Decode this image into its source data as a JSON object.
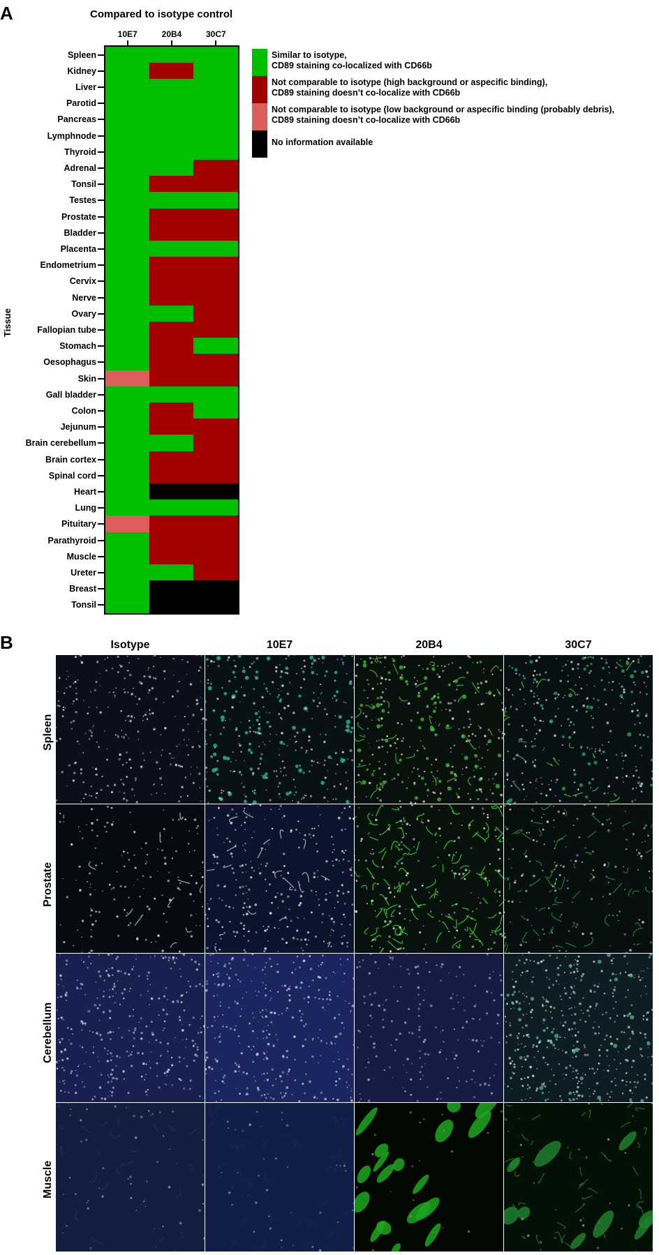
{
  "panel_a": {
    "letter": "A",
    "title": "Compared to isotype control",
    "y_axis_label": "Tissue",
    "columns": [
      "10E7",
      "20B4",
      "30C7"
    ],
    "rows": [
      {
        "tissue": "Spleen",
        "values": [
          "similar",
          "similar",
          "similar"
        ]
      },
      {
        "tissue": "Kidney",
        "values": [
          "similar",
          "high",
          "similar"
        ]
      },
      {
        "tissue": "Liver",
        "values": [
          "similar",
          "similar",
          "similar"
        ]
      },
      {
        "tissue": "Parotid",
        "values": [
          "similar",
          "similar",
          "similar"
        ]
      },
      {
        "tissue": "Pancreas",
        "values": [
          "similar",
          "similar",
          "similar"
        ]
      },
      {
        "tissue": "Lymphnode",
        "values": [
          "similar",
          "similar",
          "similar"
        ]
      },
      {
        "tissue": "Thyroid",
        "values": [
          "similar",
          "similar",
          "similar"
        ]
      },
      {
        "tissue": "Adrenal",
        "values": [
          "similar",
          "similar",
          "high"
        ]
      },
      {
        "tissue": "Tonsil",
        "values": [
          "similar",
          "high",
          "high"
        ]
      },
      {
        "tissue": "Testes",
        "values": [
          "similar",
          "similar",
          "similar"
        ]
      },
      {
        "tissue": "Prostate",
        "values": [
          "similar",
          "high",
          "high"
        ]
      },
      {
        "tissue": "Bladder",
        "values": [
          "similar",
          "high",
          "high"
        ]
      },
      {
        "tissue": "Placenta",
        "values": [
          "similar",
          "similar",
          "similar"
        ]
      },
      {
        "tissue": "Endometrium",
        "values": [
          "similar",
          "high",
          "high"
        ]
      },
      {
        "tissue": "Cervix",
        "values": [
          "similar",
          "high",
          "high"
        ]
      },
      {
        "tissue": "Nerve",
        "values": [
          "similar",
          "high",
          "high"
        ]
      },
      {
        "tissue": "Ovary",
        "values": [
          "similar",
          "similar",
          "high"
        ]
      },
      {
        "tissue": "Fallopian tube",
        "values": [
          "similar",
          "high",
          "high"
        ]
      },
      {
        "tissue": "Stomach",
        "values": [
          "similar",
          "high",
          "similar"
        ]
      },
      {
        "tissue": "Oesophagus",
        "values": [
          "similar",
          "high",
          "high"
        ]
      },
      {
        "tissue": "Skin",
        "values": [
          "low",
          "high",
          "high"
        ]
      },
      {
        "tissue": "Gall bladder",
        "values": [
          "similar",
          "similar",
          "similar"
        ]
      },
      {
        "tissue": "Colon",
        "values": [
          "similar",
          "high",
          "similar"
        ]
      },
      {
        "tissue": "Jejunum",
        "values": [
          "similar",
          "high",
          "high"
        ]
      },
      {
        "tissue": "Brain cerebellum",
        "values": [
          "similar",
          "similar",
          "high"
        ]
      },
      {
        "tissue": "Brain cortex",
        "values": [
          "similar",
          "high",
          "high"
        ]
      },
      {
        "tissue": "Spinal cord",
        "values": [
          "similar",
          "high",
          "high"
        ]
      },
      {
        "tissue": "Heart",
        "values": [
          "similar",
          "none",
          "none"
        ]
      },
      {
        "tissue": "Lung",
        "values": [
          "similar",
          "similar",
          "similar"
        ]
      },
      {
        "tissue": "Pituitary",
        "values": [
          "low",
          "high",
          "high"
        ]
      },
      {
        "tissue": "Parathyroid",
        "values": [
          "similar",
          "high",
          "high"
        ]
      },
      {
        "tissue": "Muscle",
        "values": [
          "similar",
          "high",
          "high"
        ]
      },
      {
        "tissue": "Ureter",
        "values": [
          "similar",
          "similar",
          "high"
        ]
      },
      {
        "tissue": "Breast",
        "values": [
          "similar",
          "none",
          "none"
        ]
      },
      {
        "tissue": "Tonsil",
        "values": [
          "similar",
          "none",
          "none"
        ]
      }
    ],
    "legend": [
      {
        "key": "similar",
        "color": "#00bf00",
        "lines": [
          "Similar to isotype,",
          "CD89 staining co-localized with CD66b"
        ]
      },
      {
        "key": "high",
        "color": "#a30000",
        "lines": [
          "Not comparable to isotype (high background or aspecific binding),",
          "CD89 staining doesn’t co-localize with CD66b"
        ]
      },
      {
        "key": "low",
        "color": "#dc5e5b",
        "lines": [
          "Not comparable to isotype (low background or aspecific binding (probably debris),",
          "CD89 staining doesn’t co-localize with CD66b"
        ]
      },
      {
        "key": "none",
        "color": "#000000",
        "lines": [
          "No information available"
        ]
      }
    ]
  },
  "panel_b": {
    "letter": "B",
    "columns": [
      "Isotype",
      "10E7",
      "20B4",
      "30C7"
    ],
    "rows": [
      "Spleen",
      "Prostate",
      "Cerebellum",
      "Muscle"
    ]
  }
}
